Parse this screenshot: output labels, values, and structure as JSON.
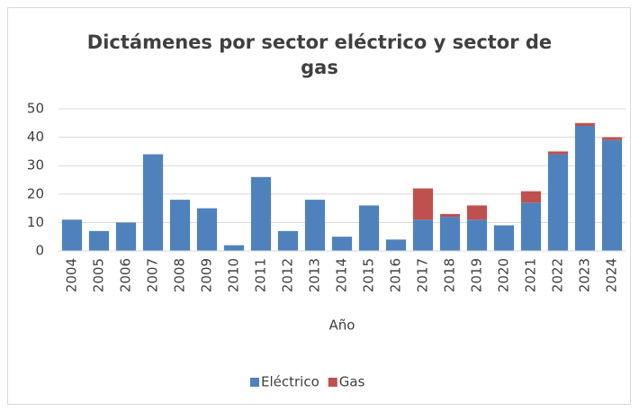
{
  "chart_data": {
    "type": "stacked_bar",
    "title": "Dictámenes por sector eléctrico y sector de gas",
    "x_label": "Año",
    "categories": [
      "2004",
      "2005",
      "2006",
      "2007",
      "2008",
      "2009",
      "2010",
      "2011",
      "2012",
      "2013",
      "2014",
      "2015",
      "2016",
      "2017",
      "2018",
      "2019",
      "2020",
      "2021",
      "2022",
      "2023",
      "2024"
    ],
    "series": [
      {
        "name": "Eléctrico",
        "color": "#4f81bd",
        "values": [
          11,
          7,
          10,
          34,
          18,
          15,
          2,
          26,
          7,
          18,
          5,
          16,
          4,
          11,
          12,
          11,
          9,
          17,
          34,
          44,
          39
        ]
      },
      {
        "name": "Gas",
        "color": "#c0504d",
        "values": [
          0,
          0,
          0,
          0,
          0,
          0,
          0,
          0,
          0,
          0,
          0,
          0,
          0,
          11,
          1,
          5,
          0,
          4,
          1,
          1,
          1
        ]
      }
    ],
    "ylim": [
      0,
      50
    ],
    "yticks": [
      0,
      10,
      20,
      30,
      40,
      50
    ],
    "grid": true,
    "legend": "bottom"
  }
}
